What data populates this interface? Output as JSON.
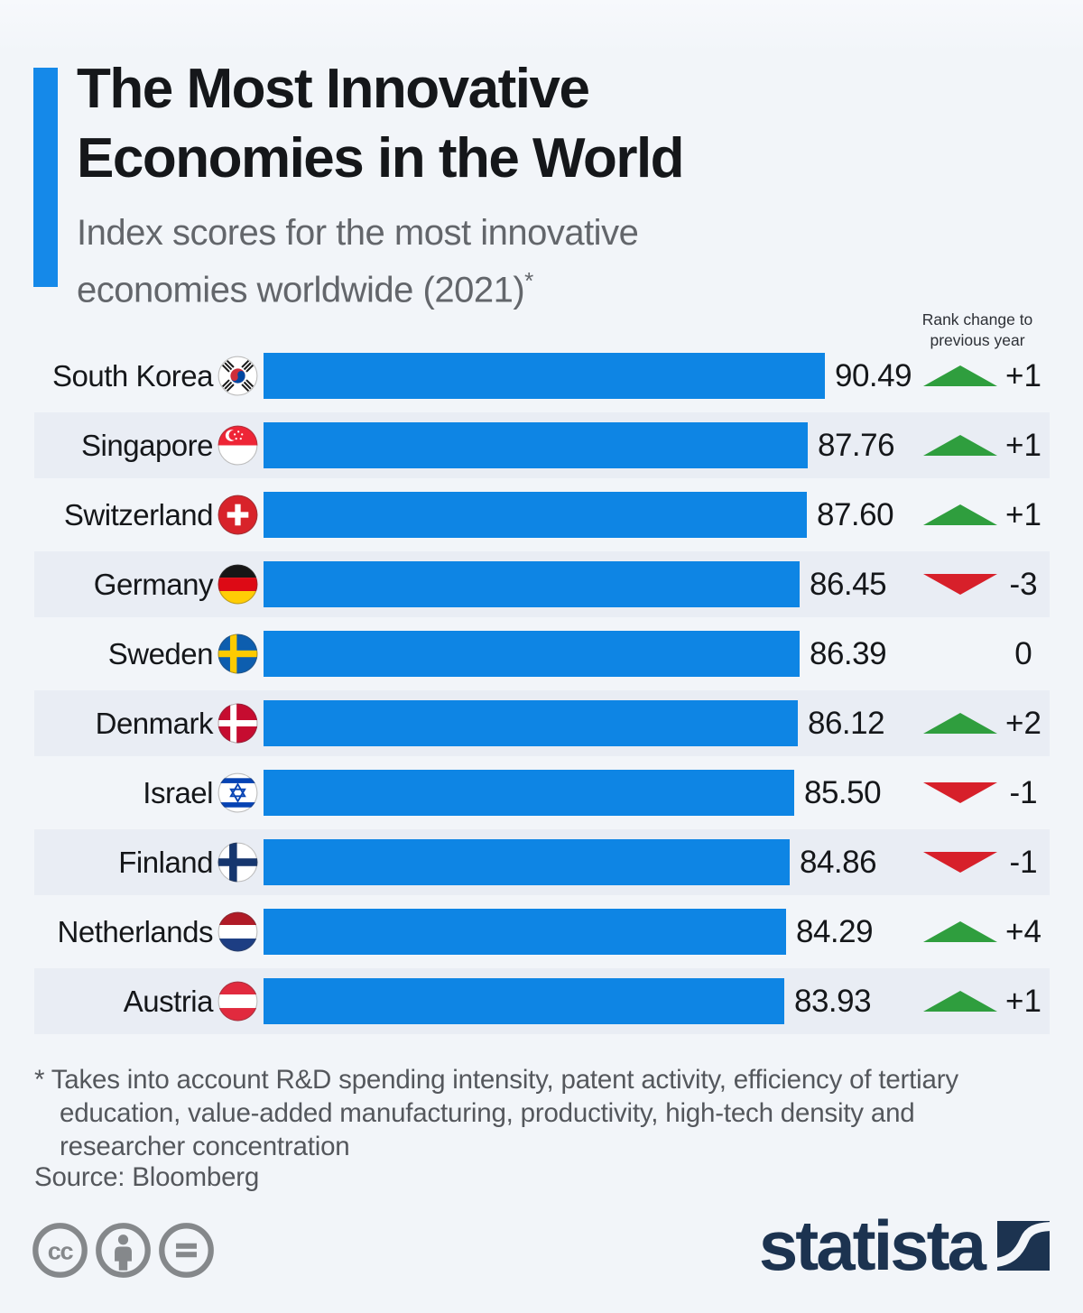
{
  "header": {
    "title_lines": [
      "The Most Innovative",
      "Economies in the World"
    ],
    "subtitle": "Index scores for the most innovative economies worldwide (2021)",
    "footnote_marker": "*"
  },
  "rank_note": "Rank change to previous year",
  "chart_data": {
    "type": "bar",
    "orientation": "horizontal",
    "title": "The Most Innovative Economies in the World",
    "subtitle": "Index scores for the most innovative economies worldwide (2021)*",
    "xlim": [
      0,
      100
    ],
    "grid": false,
    "bar_color": "#0e85e4",
    "up_color": "#2f9e3e",
    "down_color": "#d7202a",
    "categories": [
      "South Korea",
      "Singapore",
      "Switzerland",
      "Germany",
      "Sweden",
      "Denmark",
      "Israel",
      "Finland",
      "Netherlands",
      "Austria"
    ],
    "values": [
      90.49,
      87.76,
      87.6,
      86.45,
      86.39,
      86.12,
      85.5,
      84.86,
      84.29,
      83.93
    ],
    "rows": [
      {
        "country": "South Korea",
        "flag": "south-korea",
        "value": 90.49,
        "score_label": "90.49",
        "trend": "up",
        "change_label": "+1"
      },
      {
        "country": "Singapore",
        "flag": "singapore",
        "value": 87.76,
        "score_label": "87.76",
        "trend": "up",
        "change_label": "+1"
      },
      {
        "country": "Switzerland",
        "flag": "switzerland",
        "value": 87.6,
        "score_label": "87.60",
        "trend": "up",
        "change_label": "+1"
      },
      {
        "country": "Germany",
        "flag": "germany",
        "value": 86.45,
        "score_label": "86.45",
        "trend": "down",
        "change_label": "-3"
      },
      {
        "country": "Sweden",
        "flag": "sweden",
        "value": 86.39,
        "score_label": "86.39",
        "trend": "none",
        "change_label": "0"
      },
      {
        "country": "Denmark",
        "flag": "denmark",
        "value": 86.12,
        "score_label": "86.12",
        "trend": "up",
        "change_label": "+2"
      },
      {
        "country": "Israel",
        "flag": "israel",
        "value": 85.5,
        "score_label": "85.50",
        "trend": "down",
        "change_label": "-1"
      },
      {
        "country": "Finland",
        "flag": "finland",
        "value": 84.86,
        "score_label": "84.86",
        "trend": "down",
        "change_label": "-1"
      },
      {
        "country": "Netherlands",
        "flag": "netherlands",
        "value": 84.29,
        "score_label": "84.29",
        "trend": "up",
        "change_label": "+4"
      },
      {
        "country": "Austria",
        "flag": "austria",
        "value": 83.93,
        "score_label": "83.93",
        "trend": "up",
        "change_label": "+1"
      }
    ]
  },
  "footnote": "* Takes into account R&D spending intensity, patent activity, efficiency of tertiary education, value-added manufacturing, productivity, high-tech density and researcher concentration",
  "source": "Source: Bloomberg",
  "license_icons": [
    "cc-icon",
    "attribution-icon",
    "equals-icon"
  ],
  "branding": {
    "logo_text": "statista"
  }
}
